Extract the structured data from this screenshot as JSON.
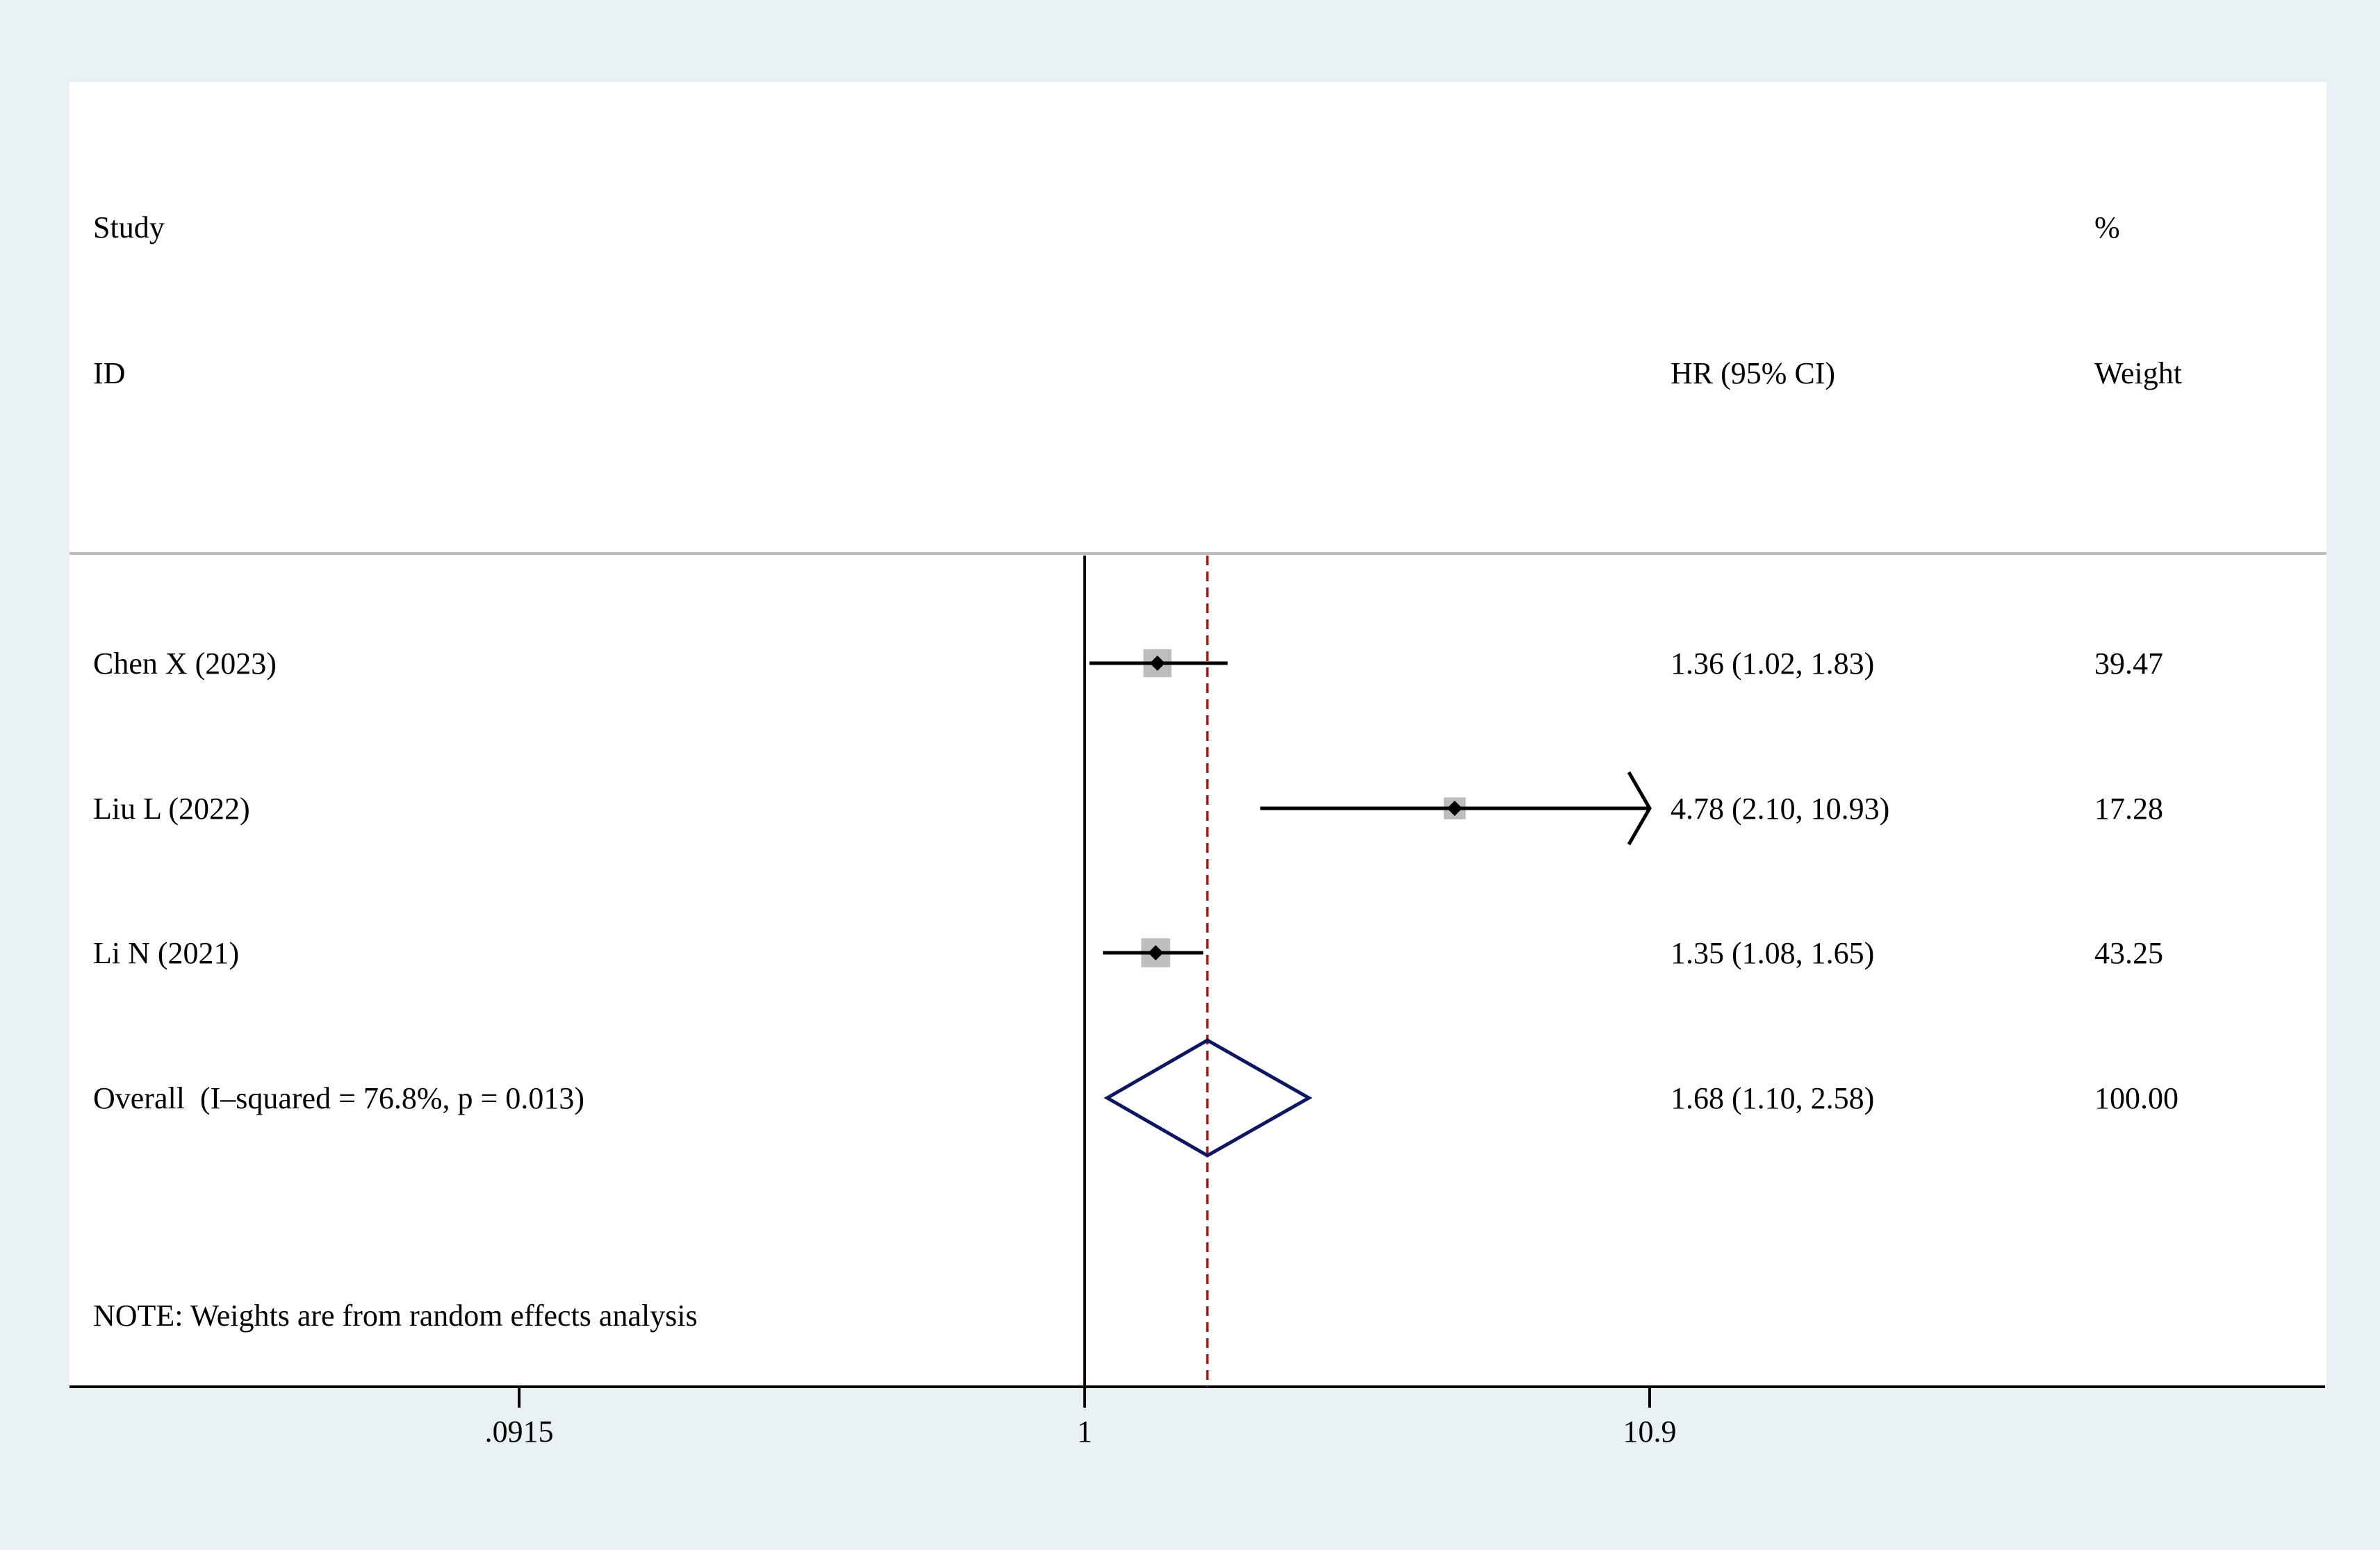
{
  "chart_data": {
    "type": "forest",
    "axis": {
      "scale": "log",
      "ticks": [
        ".0915",
        "1",
        "10.9"
      ],
      "null_value": 1,
      "xlim": [
        0.0915,
        10.9
      ]
    },
    "headers": {
      "study_line1": "Study",
      "study_line2": "ID",
      "effect": "HR (95% CI)",
      "weight_line1": "%",
      "weight_line2": "Weight"
    },
    "studies": [
      {
        "id": "Chen X (2023)",
        "hr": 1.36,
        "lower": 1.02,
        "upper": 1.83,
        "label": "1.36 (1.02, 1.83)",
        "weight": "39.47"
      },
      {
        "id": "Liu L (2022)",
        "hr": 4.78,
        "lower": 2.1,
        "upper": 10.93,
        "label": "4.78 (2.10, 10.93)",
        "weight": "17.28"
      },
      {
        "id": "Li N (2021)",
        "hr": 1.35,
        "lower": 1.08,
        "upper": 1.65,
        "label": "1.35 (1.08, 1.65)",
        "weight": "43.25"
      }
    ],
    "overall": {
      "id": "Overall  (I–squared = 76.8%, p = 0.013)",
      "hr": 1.68,
      "lower": 1.1,
      "upper": 2.58,
      "label": "1.68 (1.10, 2.58)",
      "weight": "100.00"
    },
    "note": "NOTE: Weights are from random effects analysis",
    "colors": {
      "background": "#eaf1f4",
      "plot": "#ffffff",
      "diamond": "#0b1760",
      "overall_line": "#8b1a1a",
      "box": "#bdbdbd"
    }
  }
}
